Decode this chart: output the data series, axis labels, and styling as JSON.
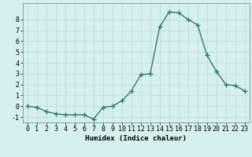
{
  "x": [
    0,
    1,
    2,
    3,
    4,
    5,
    6,
    7,
    8,
    9,
    10,
    11,
    12,
    13,
    14,
    15,
    16,
    17,
    18,
    19,
    20,
    21,
    22,
    23
  ],
  "y": [
    0.0,
    -0.1,
    -0.5,
    -0.7,
    -0.8,
    -0.8,
    -0.8,
    -1.2,
    -0.1,
    0.0,
    0.5,
    1.4,
    2.9,
    3.0,
    7.3,
    8.7,
    8.6,
    8.0,
    7.5,
    4.7,
    3.2,
    2.0,
    1.9,
    1.4
  ],
  "line_color": "#2e7d6e",
  "marker": "+",
  "marker_size": 4,
  "bg_color": "#d6f0ef",
  "grid_color": "#c0d8d8",
  "xlabel": "Humidex (Indice chaleur)",
  "xlim": [
    -0.5,
    23.5
  ],
  "ylim": [
    -1.5,
    9.5
  ],
  "xticks": [
    0,
    1,
    2,
    3,
    4,
    5,
    6,
    7,
    8,
    9,
    10,
    11,
    12,
    13,
    14,
    15,
    16,
    17,
    18,
    19,
    20,
    21,
    22,
    23
  ],
  "yticks": [
    -1,
    0,
    1,
    2,
    3,
    4,
    5,
    6,
    7,
    8
  ],
  "label_fontsize": 6.5,
  "tick_fontsize": 6
}
